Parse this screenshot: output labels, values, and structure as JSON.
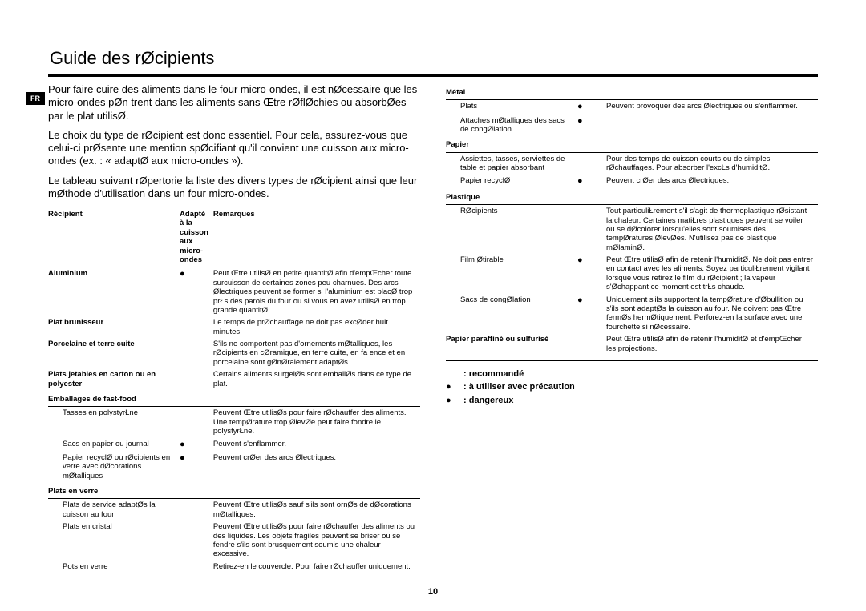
{
  "fr_badge": "FR",
  "title": "Guide des rØcipients",
  "intro": [
    "Pour faire cuire des aliments dans le four micro-ondes, il est nØcessaire que les micro-ondes pØn trent dans les aliments sans Œtre rØflØchies ou absorbØes par le plat utilisØ.",
    "Le choix du type de rØcipient est donc essentiel.  Pour cela, assurez-vous que celui-ci prØsente une mention spØcifiant qu'il convient   une cuisson aux micro-ondes (ex. : « adaptØ aux micro-ondes »).",
    "Le tableau suivant rØpertorie la liste des divers types de rØcipient ainsi que leur mØthode d'utilisation dans un four micro-ondes."
  ],
  "header": {
    "col1": "Récipient",
    "col2": "Adapté à la cuisson aux micro-ondes",
    "col3": "Remarques"
  },
  "left": [
    {
      "type": "cat",
      "name": "Aluminium",
      "sym": "●",
      "text": "Peut Œtre utilisØ en petite quantitØ afin d'empŒcher toute surcuisson de certaines zones peu charnues. Des arcs Ølectriques peuvent se former si l'aluminium est placØ trop prŁs des parois du four ou si vous en avez utilisØ en trop grande quantitØ."
    },
    {
      "type": "cat",
      "name": "Plat brunisseur",
      "sym": "",
      "text": "Le temps de prØchauffage ne doit pas excØder huit minutes."
    },
    {
      "type": "cat",
      "name": "Porcelaine et terre cuite",
      "sym": "",
      "text": "S'ils ne comportent pas d'ornements mØtalliques, les rØcipients en cØramique, en terre cuite, en fa ence et en porcelaine sont gØnØralement adaptØs."
    },
    {
      "type": "cat",
      "name": "Plats jetables en carton ou en polyester",
      "sym": "",
      "text": "Certains aliments surgelØs sont emballØs dans ce type de plat."
    },
    {
      "type": "sec",
      "name": "Emballages de fast-food"
    },
    {
      "type": "row",
      "name": "Tasses en polystyrŁne",
      "sym": "",
      "text": "Peuvent Œtre utilisØs pour faire rØchauffer des aliments. Une tempØrature trop ØlevØe peut faire fondre le polystyrŁne."
    },
    {
      "type": "row",
      "name": "Sacs en papier ou journal",
      "sym": "●",
      "text": "Peuvent s'enflammer."
    },
    {
      "type": "row",
      "name": "Papier recyclØ ou rØcipients en verre avec dØcorations mØtalliques",
      "sym": "●",
      "text": "Peuvent crØer des arcs Ølectriques."
    },
    {
      "type": "sec",
      "name": "Plats en verre"
    },
    {
      "type": "row",
      "name": "Plats de service adaptØs   la cuisson au four",
      "sym": "",
      "text": "Peuvent Œtre utilisØs sauf s'ils sont ornØs de dØcorations mØtalliques."
    },
    {
      "type": "row",
      "name": "Plats en cristal",
      "sym": "",
      "text": "Peuvent Œtre utilisØs pour faire rØchauffer des aliments ou des liquides. Les objets fragiles peuvent se briser ou se fendre s'ils sont brusquement soumis   une chaleur excessive."
    },
    {
      "type": "row",
      "name": "Pots en verre",
      "sym": "",
      "text": "Retirez-en le couvercle. Pour faire rØchauffer uniquement."
    }
  ],
  "right": [
    {
      "type": "sec",
      "name": "Métal"
    },
    {
      "type": "row",
      "name": "Plats",
      "sym": "●",
      "text": "Peuvent provoquer des arcs Ølectriques ou s'enflammer."
    },
    {
      "type": "row",
      "name": "Attaches mØtalliques des sacs de congØlation",
      "sym": "●",
      "text": ""
    },
    {
      "type": "sec",
      "name": "Papier"
    },
    {
      "type": "row",
      "name": "Assiettes, tasses, serviettes de table et papier absorbant",
      "sym": "",
      "text": "Pour des temps de cuisson courts ou de simples rØchauffages. Pour absorber l'excŁs d'humiditØ."
    },
    {
      "type": "row",
      "name": "Papier recyclØ",
      "sym": "●",
      "text": "Peuvent crØer des arcs Ølectriques."
    },
    {
      "type": "sec",
      "name": "Plastique"
    },
    {
      "type": "row",
      "name": "RØcipients",
      "sym": "",
      "text": "Tout particuliŁrement s'il s'agit de thermoplastique rØsistant   la chaleur. Certaines matiŁres plastiques peuvent se voiler ou se dØcolorer lorsqu'elles sont soumises   des tempØratures ØlevØes. N'utilisez pas de plastique mØlaminØ."
    },
    {
      "type": "row",
      "name": "Film Øtirable",
      "sym": "●",
      "text": "Peut Œtre utilisØ afin de retenir l'humiditØ. Ne doit pas entrer en contact avec les aliments. Soyez particuliŁrement vigilant lorsque vous retirez le film du rØcipient ; la vapeur s'Øchappant   ce moment est trŁs chaude."
    },
    {
      "type": "row",
      "name": "Sacs de congØlation",
      "sym": "●",
      "text": "Uniquement s'ils supportent la tempØrature d'Øbullition ou s'ils sont adaptØs   la cuisson au four. Ne doivent pas Œtre fermØs hermØtiquement. Perforez-en la surface avec une fourchette si nØcessaire."
    },
    {
      "type": "cat",
      "name": "Papier paraffiné ou sulfurisé",
      "sym": "",
      "text": "Peut Œtre utilisØ afin de retenir l'humiditØ et d'empŒcher les projections."
    }
  ],
  "legend": {
    "rec": ": recommandé",
    "prec": ": à utiliser avec précaution",
    "dang": ": dangereux"
  },
  "page_number": "10"
}
